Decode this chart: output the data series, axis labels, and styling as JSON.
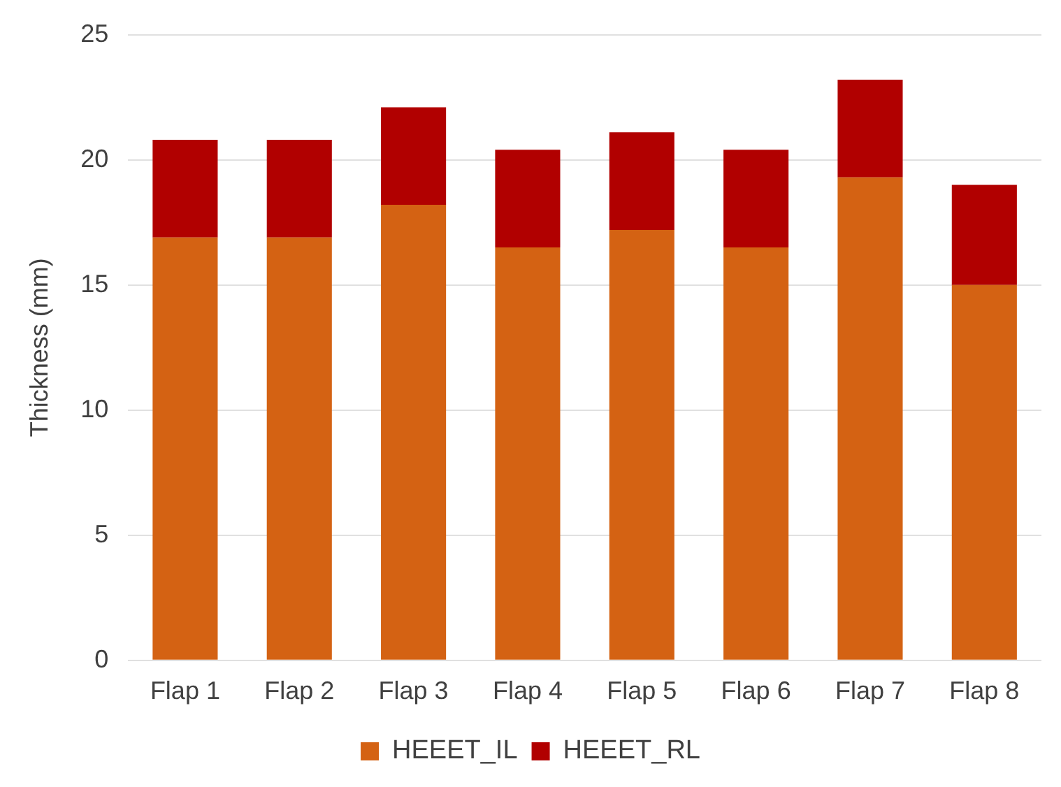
{
  "chart_data": {
    "type": "bar",
    "ylabel": "Thickness (mm)",
    "categories": [
      "Flap 1",
      "Flap 2",
      "Flap 3",
      "Flap 4",
      "Flap 5",
      "Flap 6",
      "Flap 7",
      "Flap 8"
    ],
    "series": [
      {
        "name": "HEEET_IL",
        "color": "#d46213",
        "values": [
          16.9,
          16.9,
          18.2,
          16.5,
          17.2,
          16.5,
          19.3,
          15.0
        ]
      },
      {
        "name": "HEEET_RL",
        "color": "#b10000",
        "values": [
          3.9,
          3.9,
          3.9,
          3.9,
          3.9,
          3.9,
          3.9,
          4.0
        ]
      }
    ],
    "stacked": true,
    "ylim": [
      0,
      25
    ],
    "yticks": [
      0,
      5,
      10,
      15,
      20,
      25
    ],
    "grid": "y",
    "legend": "bottom"
  }
}
